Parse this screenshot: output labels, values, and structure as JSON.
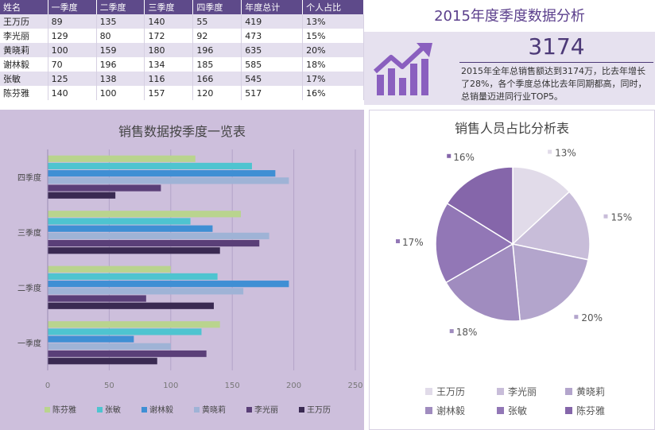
{
  "table": {
    "headers": [
      "姓名",
      "一季度",
      "二季度",
      "三季度",
      "四季度",
      "年度总计",
      "个人占比"
    ],
    "rows": [
      [
        "王万历",
        "89",
        "135",
        "140",
        "55",
        "419",
        "13%"
      ],
      [
        "李光丽",
        "129",
        "80",
        "172",
        "92",
        "473",
        "15%"
      ],
      [
        "黄晓莉",
        "100",
        "159",
        "180",
        "196",
        "635",
        "20%"
      ],
      [
        "谢林毅",
        "70",
        "196",
        "134",
        "185",
        "585",
        "18%"
      ],
      [
        "张敏",
        "125",
        "138",
        "116",
        "166",
        "545",
        "17%"
      ],
      [
        "陈芬雅",
        "140",
        "100",
        "157",
        "120",
        "517",
        "16%"
      ]
    ]
  },
  "dashboard": {
    "title": "2015年度季度数据分析",
    "kpi_value": "3174",
    "kpi_text": "2015年全年总销售额达到3174万，比去年增长了28%，各个季度总体比去年同期都高，同时，总销量迈进同行业TOP5。",
    "kpi_icon": "chart-up-arrow-icon"
  },
  "chart_data": [
    {
      "type": "bar",
      "orientation": "horizontal",
      "title": "销售数据按季度一览表",
      "categories": [
        "一季度",
        "二季度",
        "三季度",
        "四季度"
      ],
      "series": [
        {
          "name": "王万历",
          "values": [
            89,
            135,
            140,
            55
          ],
          "color": "#3a2a52"
        },
        {
          "name": "李光丽",
          "values": [
            129,
            80,
            172,
            92
          ],
          "color": "#5a3f78"
        },
        {
          "name": "黄晓莉",
          "values": [
            100,
            159,
            180,
            196
          ],
          "color": "#9fb3d6"
        },
        {
          "name": "谢林毅",
          "values": [
            70,
            196,
            134,
            185
          ],
          "color": "#3f8fd4"
        },
        {
          "name": "张敏",
          "values": [
            125,
            138,
            116,
            166
          ],
          "color": "#4ec4d0"
        },
        {
          "name": "陈芬雅",
          "values": [
            140,
            100,
            157,
            120
          ],
          "color": "#b9d48e"
        }
      ],
      "xlim": [
        0,
        250
      ],
      "xticks": [
        0,
        50,
        100,
        150,
        200,
        250
      ],
      "grid": true,
      "legend": "bottom"
    },
    {
      "type": "pie",
      "title": "销售人员占比分析表",
      "labels": [
        "王万历",
        "李光丽",
        "黄晓莉",
        "谢林毅",
        "张敏",
        "陈芬雅"
      ],
      "values": [
        13,
        15,
        20,
        18,
        17,
        16
      ],
      "data_labels": [
        "13%",
        "15%",
        "20%",
        "18%",
        "17%",
        "16%"
      ],
      "colors": [
        "#e1dbe9",
        "#c8bdd9",
        "#b3a5cc",
        "#a08cbf",
        "#9277b6",
        "#8566aa"
      ],
      "legend": "bottom"
    }
  ]
}
